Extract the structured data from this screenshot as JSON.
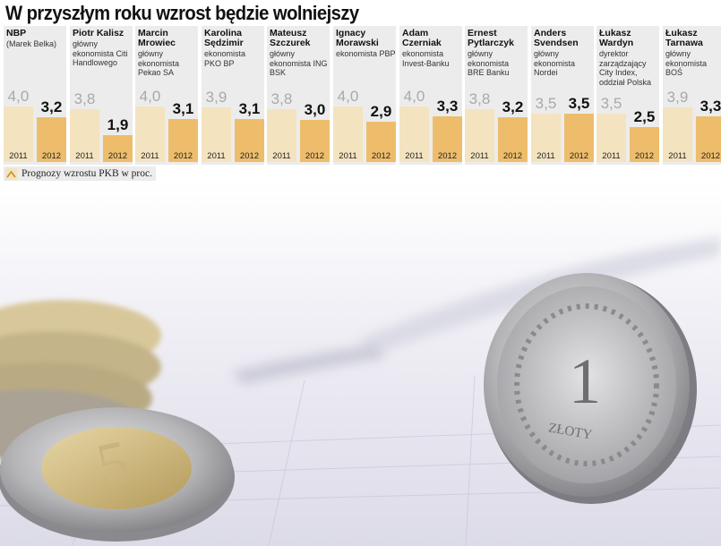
{
  "title": "W przyszłym roku wzrost będzie wolniejszy",
  "legend": "Prognozy wzrostu PKB w proc.",
  "colors": {
    "bar_2011": "#f3e3bf",
    "bar_2012": "#eebd6b",
    "panel_bg": "#ececec"
  },
  "chart_data": {
    "type": "bar",
    "title": "W przyszłym roku wzrost będzie wolniejszy",
    "ylabel": "Prognozy wzrostu PKB w proc.",
    "ylim": [
      0,
      4.5
    ],
    "categories": [
      "2011",
      "2012"
    ],
    "panels": [
      {
        "name": "NBP",
        "role": "(Marek Belka)",
        "values": [
          4.0,
          3.2
        ],
        "labels": [
          "4,0",
          "3,2"
        ]
      },
      {
        "name": "Piotr Kalisz",
        "role": "główny ekonomista Citi Handlowego",
        "values": [
          3.8,
          1.9
        ],
        "labels": [
          "3,8",
          "1,9"
        ]
      },
      {
        "name": "Marcin Mrowiec",
        "role": "główny ekonomista Pekao SA",
        "values": [
          4.0,
          3.1
        ],
        "labels": [
          "4,0",
          "3,1"
        ]
      },
      {
        "name": "Karolina Sędzimir",
        "role": "ekonomista PKO BP",
        "values": [
          3.9,
          3.1
        ],
        "labels": [
          "3,9",
          "3,1"
        ]
      },
      {
        "name": "Mateusz Szczurek",
        "role": "główny ekonomista ING BSK",
        "values": [
          3.8,
          3.0
        ],
        "labels": [
          "3,8",
          "3,0"
        ]
      },
      {
        "name": "Ignacy Morawski",
        "role": "ekonomista PBP",
        "values": [
          4.0,
          2.9
        ],
        "labels": [
          "4,0",
          "2,9"
        ]
      },
      {
        "name": "Adam Czerniak",
        "role": "ekonomista Invest-Banku",
        "values": [
          4.0,
          3.3
        ],
        "labels": [
          "4,0",
          "3,3"
        ]
      },
      {
        "name": "Ernest Pytlarczyk",
        "role": "główny ekonomista BRE Banku",
        "values": [
          3.8,
          3.2
        ],
        "labels": [
          "3,8",
          "3,2"
        ]
      },
      {
        "name": "Anders Svendsen",
        "role": "główny ekonomista Nordei",
        "values": [
          3.5,
          3.5
        ],
        "labels": [
          "3,5",
          "3,5"
        ]
      },
      {
        "name": "Łukasz Wardyn",
        "role": "dyrektor zarządzający City Index, oddział Polska",
        "values": [
          3.5,
          2.5
        ],
        "labels": [
          "3,5",
          "2,5"
        ]
      },
      {
        "name": "Łukasz Tarnawa",
        "role": "główny ekonomista BOŚ",
        "values": [
          3.9,
          3.3
        ],
        "labels": [
          "3,9",
          "3,3"
        ]
      }
    ]
  },
  "photo": {
    "coin_large_text": "1",
    "coin_large_caption": "ZŁOTY",
    "coin_small_text": "5"
  }
}
